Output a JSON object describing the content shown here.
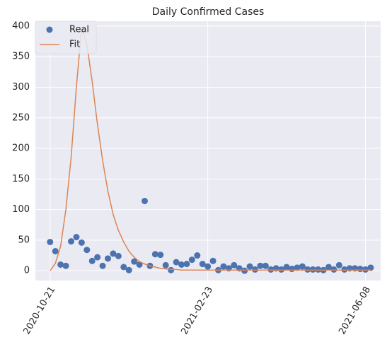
{
  "chart_data": {
    "type": "combo",
    "title": "Daily Confirmed Cases",
    "categories": [
      "2020-10-21",
      null,
      null,
      null,
      null,
      null,
      null,
      null,
      null,
      null,
      null,
      null,
      null,
      null,
      null,
      null,
      null,
      null,
      null,
      null,
      null,
      null,
      null,
      null,
      null,
      null,
      null,
      null,
      null,
      null,
      "2021-02-23",
      null,
      null,
      null,
      null,
      null,
      null,
      null,
      null,
      null,
      null,
      null,
      null,
      null,
      null,
      null,
      null,
      null,
      null,
      null,
      null,
      null,
      null,
      null,
      null,
      null,
      null,
      null,
      null,
      null,
      "2021-06-08",
      null
    ],
    "series": [
      {
        "name": "Real",
        "kind": "scatter",
        "color": "#4c72b0",
        "values": [
          47,
          32,
          10,
          8,
          48,
          55,
          46,
          34,
          16,
          22,
          8,
          20,
          28,
          24,
          6,
          1,
          15,
          10,
          114,
          8,
          27,
          26,
          9,
          1,
          14,
          10,
          11,
          18,
          25,
          11,
          7,
          16,
          1,
          7,
          4,
          9,
          4,
          0,
          7,
          2,
          8,
          8,
          2,
          4,
          2,
          6,
          3,
          5,
          7,
          2,
          2,
          2,
          1,
          6,
          2,
          9,
          2,
          4,
          4,
          3,
          2,
          5
        ]
      },
      {
        "name": "Fit",
        "kind": "line",
        "color": "#dd8452",
        "values": [
          0,
          12,
          40,
          100,
          185,
          300,
          398,
          370,
          310,
          240,
          180,
          130,
          92,
          66,
          47,
          32,
          22,
          15,
          11,
          8,
          6,
          4,
          3,
          2,
          2,
          1,
          1,
          1,
          1,
          1,
          1,
          1,
          1,
          1,
          1,
          1,
          1,
          1,
          1,
          1,
          1,
          1,
          1,
          1,
          1,
          1,
          1,
          1,
          1,
          1,
          1,
          1,
          1,
          1,
          1,
          1,
          1,
          1,
          1,
          1,
          1,
          1
        ]
      }
    ],
    "xlim": [
      -2.8,
      62.9
    ],
    "ylim": [
      -16,
      408
    ],
    "yticks": [
      0,
      50,
      100,
      150,
      200,
      250,
      300,
      350,
      400
    ],
    "grid": true,
    "legend": "upper left"
  }
}
